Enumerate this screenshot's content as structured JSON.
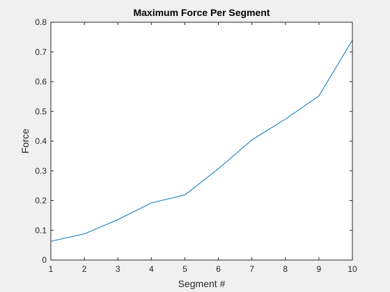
{
  "chart_data": {
    "type": "line",
    "title": "Maximum Force Per Segment",
    "xlabel": "Segment #",
    "ylabel": "Force",
    "xlim": [
      1,
      10
    ],
    "ylim": [
      0,
      0.8
    ],
    "xticks": [
      "1",
      "2",
      "3",
      "4",
      "5",
      "6",
      "7",
      "8",
      "9",
      "10"
    ],
    "yticks": [
      "0",
      "0.1",
      "0.2",
      "0.3",
      "0.4",
      "0.5",
      "0.6",
      "0.7",
      "0.8"
    ],
    "grid": false,
    "series": [
      {
        "x": [
          1,
          2,
          3,
          4,
          5,
          6,
          7,
          8,
          9,
          10
        ],
        "values": [
          0.063,
          0.088,
          0.136,
          0.192,
          0.219,
          0.307,
          0.404,
          0.474,
          0.552,
          0.74
        ],
        "color": "#0072bd"
      }
    ]
  }
}
